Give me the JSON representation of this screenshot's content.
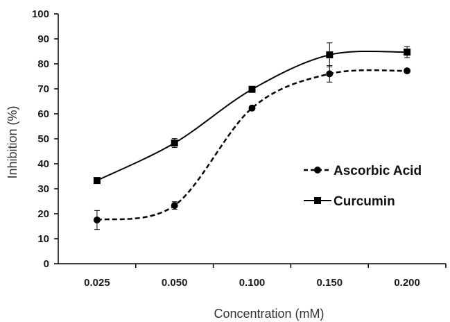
{
  "chart_data": {
    "type": "line",
    "categories": [
      "0.025",
      "0.050",
      "0.100",
      "0.150",
      "0.200"
    ],
    "xlabel": "Concentration (mM)",
    "ylabel": "Inhibition (%)",
    "ylim": [
      0,
      100
    ],
    "yticks": [
      0,
      10,
      20,
      30,
      40,
      50,
      60,
      70,
      80,
      90,
      100
    ],
    "grid": false,
    "legend_position": "center-right",
    "series": [
      {
        "name": "Ascorbic Acid",
        "values": [
          17.5,
          23.3,
          62.3,
          76.0,
          77.2
        ],
        "errors": [
          3.8,
          1.5,
          0.8,
          3.3,
          0.6
        ],
        "marker": "circle",
        "line_style": "dashed",
        "color": "#000000"
      },
      {
        "name": "Curcumin",
        "values": [
          33.3,
          48.3,
          69.8,
          83.6,
          84.7
        ],
        "errors": [
          0.8,
          1.8,
          0.8,
          4.8,
          2.2
        ],
        "marker": "square",
        "line_style": "solid",
        "color": "#000000"
      }
    ]
  }
}
